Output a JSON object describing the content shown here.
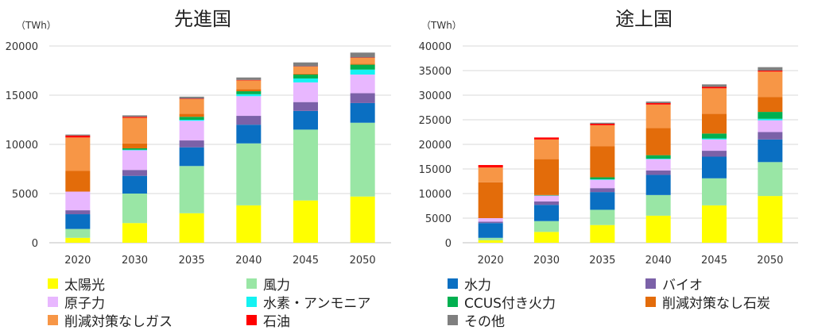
{
  "chart_data": [
    {
      "type": "bar",
      "stacked": true,
      "title": "先進国",
      "ylabel": "（TWh）",
      "xlabel": "",
      "categories": [
        "2020",
        "2030",
        "2035",
        "2040",
        "2045",
        "2050"
      ],
      "ylim": [
        0,
        20000
      ],
      "yticks": [
        "0",
        "5000",
        "10000",
        "15000",
        "20000"
      ],
      "grid": true,
      "series": [
        {
          "name": "太陽光",
          "color": "#FFFF00",
          "values": [
            500,
            2000,
            3000,
            3800,
            4300,
            4700
          ]
        },
        {
          "name": "風力",
          "color": "#99E6A5",
          "values": [
            900,
            3000,
            4800,
            6300,
            7200,
            7500
          ]
        },
        {
          "name": "水力",
          "color": "#0A6FC2",
          "values": [
            1500,
            1800,
            1900,
            1900,
            1900,
            2000
          ]
        },
        {
          "name": "バイオ",
          "color": "#7B61A8",
          "values": [
            400,
            600,
            700,
            900,
            900,
            1000
          ]
        },
        {
          "name": "原子力",
          "color": "#E8B7FF",
          "values": [
            1900,
            2000,
            2000,
            2000,
            2000,
            1900
          ]
        },
        {
          "name": "水素・アンモニア",
          "color": "#14F2F2",
          "values": [
            0,
            50,
            100,
            200,
            400,
            500
          ]
        },
        {
          "name": "CCUS付き火力",
          "color": "#00B050",
          "values": [
            0,
            150,
            300,
            300,
            400,
            500
          ]
        },
        {
          "name": "削減対策なし石炭",
          "color": "#E36C0A",
          "values": [
            2100,
            500,
            300,
            200,
            100,
            100
          ]
        },
        {
          "name": "削減対策なしガス",
          "color": "#F79646",
          "values": [
            3400,
            2600,
            1500,
            900,
            700,
            600
          ]
        },
        {
          "name": "石油",
          "color": "#FF0000",
          "values": [
            200,
            100,
            50,
            50,
            30,
            30
          ]
        },
        {
          "name": "その他",
          "color": "#7F7F7F",
          "values": [
            100,
            150,
            200,
            250,
            400,
            500
          ]
        }
      ]
    },
    {
      "type": "bar",
      "stacked": true,
      "title": "途上国",
      "ylabel": "（TWh）",
      "xlabel": "",
      "categories": [
        "2020",
        "2030",
        "2035",
        "2040",
        "2045",
        "2050"
      ],
      "ylim": [
        0,
        40000
      ],
      "yticks": [
        "0",
        "5000",
        "10000",
        "15000",
        "20000",
        "25000",
        "30000",
        "35000",
        "40000"
      ],
      "grid": true,
      "series": [
        {
          "name": "太陽光",
          "color": "#FFFF00",
          "values": [
            500,
            2200,
            3600,
            5500,
            7600,
            9500
          ]
        },
        {
          "name": "風力",
          "color": "#99E6A5",
          "values": [
            500,
            2200,
            3100,
            4200,
            5500,
            6900
          ]
        },
        {
          "name": "水力",
          "color": "#0A6FC2",
          "values": [
            3000,
            3300,
            3600,
            4100,
            4400,
            4600
          ]
        },
        {
          "name": "バイオ",
          "color": "#7B61A8",
          "values": [
            300,
            700,
            800,
            900,
            1200,
            1500
          ]
        },
        {
          "name": "原子力",
          "color": "#E8B7FF",
          "values": [
            700,
            1200,
            1700,
            2300,
            2300,
            2400
          ]
        },
        {
          "name": "水素・アンモニア",
          "color": "#14F2F2",
          "values": [
            0,
            0,
            100,
            100,
            200,
            300
          ]
        },
        {
          "name": "CCUS付き火力",
          "color": "#00B050",
          "values": [
            0,
            100,
            400,
            700,
            1000,
            1400
          ]
        },
        {
          "name": "削減対策なし石炭",
          "color": "#E36C0A",
          "values": [
            7300,
            7300,
            6300,
            5500,
            4000,
            3000
          ]
        },
        {
          "name": "削減対策なしガス",
          "color": "#F79646",
          "values": [
            3000,
            4000,
            4300,
            4800,
            5200,
            5200
          ]
        },
        {
          "name": "石油",
          "color": "#FF0000",
          "values": [
            500,
            400,
            300,
            300,
            300,
            200
          ]
        },
        {
          "name": "その他",
          "color": "#7F7F7F",
          "values": [
            0,
            0,
            200,
            300,
            500,
            700
          ]
        }
      ]
    }
  ],
  "legend_columns": [
    [
      "太陽光",
      "原子力",
      "削減対策なしガス"
    ],
    [
      "風力",
      "水素・アンモニア",
      "石油"
    ],
    [
      "水力",
      "CCUS付き火力",
      "その他"
    ],
    [
      "バイオ",
      "削減対策なし石炭"
    ]
  ]
}
